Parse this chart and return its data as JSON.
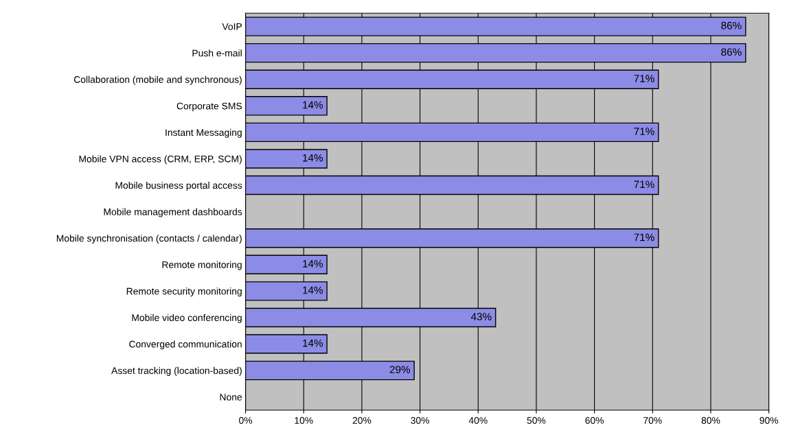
{
  "chart_data": {
    "type": "bar",
    "orientation": "horizontal",
    "categories": [
      "VoIP",
      "Push e-mail",
      "Collaboration (mobile and synchronous)",
      "Corporate SMS",
      "Instant Messaging",
      "Mobile VPN access (CRM, ERP, SCM)",
      "Mobile business portal access",
      "Mobile management dashboards",
      "Mobile synchronisation (contacts / calendar)",
      "Remote monitoring",
      "Remote security monitoring",
      "Mobile video conferencing",
      "Converged communication",
      "Asset tracking (location-based)",
      "None"
    ],
    "values": [
      86,
      86,
      71,
      14,
      71,
      14,
      71,
      0,
      71,
      14,
      14,
      43,
      14,
      29,
      0
    ],
    "value_labels": [
      "86%",
      "86%",
      "71%",
      "14%",
      "71%",
      "14%",
      "71%",
      null,
      "71%",
      "14%",
      "14%",
      "43%",
      "14%",
      "29%",
      null
    ],
    "color": "#8c8ce6",
    "xlim": [
      0,
      90
    ],
    "xticks": [
      {
        "value": 0,
        "label": "0%"
      },
      {
        "value": 10,
        "label": "10%"
      },
      {
        "value": 20,
        "label": "20%"
      },
      {
        "value": 30,
        "label": "30%"
      },
      {
        "value": 40,
        "label": "40%"
      },
      {
        "value": 50,
        "label": "50%"
      },
      {
        "value": 60,
        "label": "60%"
      },
      {
        "value": 70,
        "label": "70%"
      },
      {
        "value": 80,
        "label": "80%"
      },
      {
        "value": 90,
        "label": "90%"
      }
    ],
    "grid": "x"
  }
}
